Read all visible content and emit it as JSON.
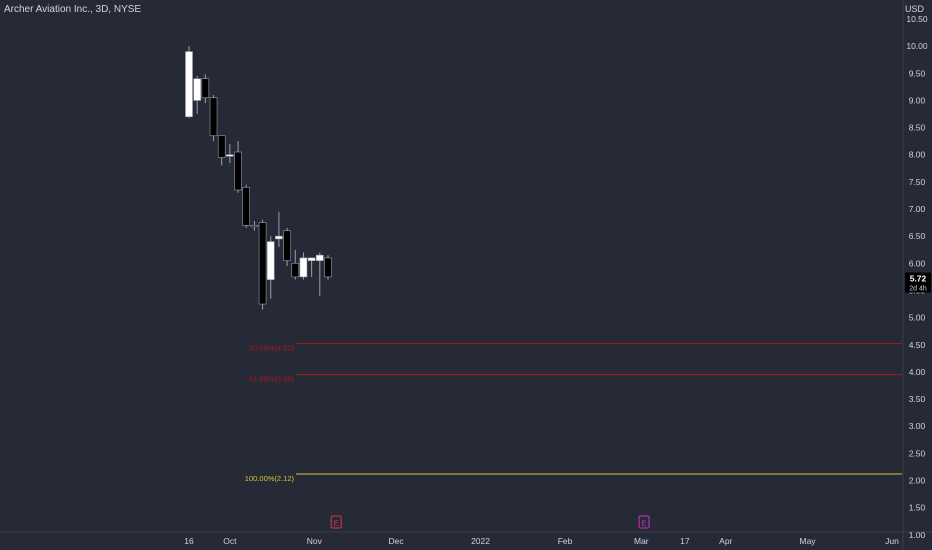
{
  "header": {
    "title": "Archer Aviation Inc., 3D, NYSE",
    "currency": "USD"
  },
  "colors": {
    "background": "#262a36",
    "axis_text": "#d1d4dc",
    "candle_up": "#ffffff",
    "candle_down": "#000000",
    "candle_outline": "#9aa0ad",
    "fib_red": "#b0161b",
    "fib_yellow": "#d8c33a",
    "earnings_red": "#e0373a",
    "earnings_magenta": "#d030c8",
    "price_badge_bg": "#000000"
  },
  "chart_data": {
    "type": "candlestick",
    "title": "Archer Aviation Inc., 3D, NYSE",
    "ylim": [
      0.72,
      10.85
    ],
    "y_ticks": [
      "10.50",
      "10.00",
      "9.50",
      "9.00",
      "8.50",
      "8.00",
      "7.50",
      "7.00",
      "6.50",
      "6.00",
      "5.50",
      "5.00",
      "4.50",
      "4.00",
      "3.50",
      "3.00",
      "2.50",
      "2.00",
      "1.50",
      "1.00"
    ],
    "x_ticks": [
      {
        "label": "16",
        "date": "2021-09-16"
      },
      {
        "label": "Oct",
        "date": "2021-10-01"
      },
      {
        "label": "Nov",
        "date": "2021-11-01"
      },
      {
        "label": "Dec",
        "date": "2021-12-01"
      },
      {
        "label": "2022",
        "date": "2022-01-01"
      },
      {
        "label": "Feb",
        "date": "2022-02-01"
      },
      {
        "label": "Mar",
        "date": "2022-03-01"
      },
      {
        "label": "17",
        "date": "2022-03-17"
      },
      {
        "label": "Apr",
        "date": "2022-04-01"
      },
      {
        "label": "May",
        "date": "2022-05-01"
      },
      {
        "label": "Jun",
        "date": "2022-06-01"
      }
    ],
    "candles": [
      {
        "date": "2021-09-16",
        "open": 8.7,
        "high": 10.0,
        "low": 8.68,
        "close": 9.9
      },
      {
        "date": "2021-09-19",
        "open": 9.0,
        "high": 9.45,
        "low": 8.75,
        "close": 9.4
      },
      {
        "date": "2021-09-22",
        "open": 9.4,
        "high": 9.48,
        "low": 8.95,
        "close": 9.05
      },
      {
        "date": "2021-09-25",
        "open": 9.05,
        "high": 9.1,
        "low": 8.25,
        "close": 8.35
      },
      {
        "date": "2021-09-28",
        "open": 8.35,
        "high": 8.35,
        "low": 7.8,
        "close": 7.95
      },
      {
        "date": "2021-10-01",
        "open": 8.0,
        "high": 8.2,
        "low": 7.85,
        "close": 8.0
      },
      {
        "date": "2021-10-04",
        "open": 8.05,
        "high": 8.25,
        "low": 7.3,
        "close": 7.35
      },
      {
        "date": "2021-10-07",
        "open": 7.4,
        "high": 7.45,
        "low": 6.65,
        "close": 6.7
      },
      {
        "date": "2021-10-10",
        "open": 6.7,
        "high": 6.78,
        "low": 6.6,
        "close": 6.68
      },
      {
        "date": "2021-10-13",
        "open": 6.75,
        "high": 6.8,
        "low": 5.15,
        "close": 5.25
      },
      {
        "date": "2021-10-16",
        "open": 5.7,
        "high": 6.5,
        "low": 5.35,
        "close": 6.4
      },
      {
        "date": "2021-10-19",
        "open": 6.45,
        "high": 6.95,
        "low": 6.3,
        "close": 6.5
      },
      {
        "date": "2021-10-22",
        "open": 6.6,
        "high": 6.65,
        "low": 5.95,
        "close": 6.05
      },
      {
        "date": "2021-10-25",
        "open": 6.0,
        "high": 6.25,
        "low": 5.7,
        "close": 5.75
      },
      {
        "date": "2021-10-28",
        "open": 5.75,
        "high": 6.2,
        "low": 5.7,
        "close": 6.1
      },
      {
        "date": "2021-10-31",
        "open": 6.05,
        "high": 6.1,
        "low": 5.75,
        "close": 6.1
      },
      {
        "date": "2021-11-03",
        "open": 6.05,
        "high": 6.2,
        "low": 5.4,
        "close": 6.15
      },
      {
        "date": "2021-11-06",
        "open": 6.1,
        "high": 6.15,
        "low": 5.7,
        "close": 5.75
      }
    ],
    "fib_levels": [
      {
        "label": "50.00%(4.52)",
        "price": 4.52,
        "color": "#b0161b"
      },
      {
        "label": "61.80%(3.95)",
        "price": 3.95,
        "color": "#b0161b"
      },
      {
        "label": "100.00%(2.12)",
        "price": 2.12,
        "color": "#d8c33a"
      }
    ],
    "last_price": {
      "value": "5.72",
      "countdown": "2d 4h"
    },
    "events": [
      {
        "type": "earnings",
        "letter": "E",
        "date": "2021-11-09",
        "color": "#e0373a"
      },
      {
        "type": "earnings",
        "letter": "E",
        "date": "2022-03-02",
        "color": "#d030c8"
      }
    ],
    "grid": false,
    "legend": "none"
  }
}
